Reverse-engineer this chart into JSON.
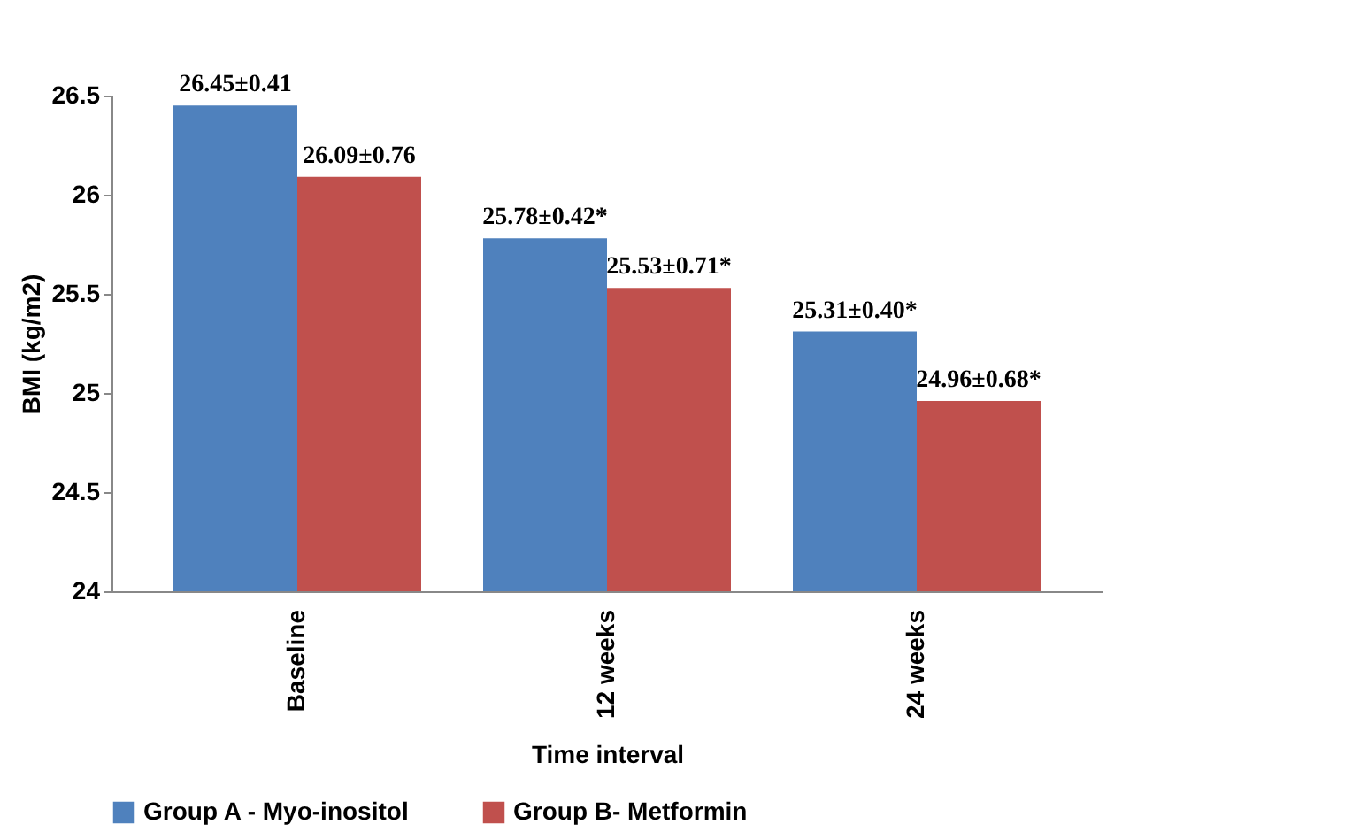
{
  "chart_data": {
    "type": "bar",
    "xlabel": "Time interval",
    "ylabel": "BMI (kg/m2)",
    "categories": [
      "Baseline",
      "12 weeks",
      "24 weeks"
    ],
    "series": [
      {
        "name": "Group A - Myo-inositol",
        "color": "#4f81bd",
        "values": [
          26.45,
          25.78,
          25.31
        ],
        "value_labels": [
          "26.45±0.41",
          "25.78±0.42*",
          "25.31±0.40*"
        ]
      },
      {
        "name": "Group B- Metformin",
        "color": "#c0504d",
        "values": [
          26.09,
          25.53,
          24.96
        ],
        "value_labels": [
          "26.09±0.76",
          "25.53±0.71*",
          "24.96±0.68*"
        ]
      }
    ],
    "ylim": [
      24,
      26.5
    ],
    "yticks": [
      24,
      24.5,
      25,
      25.5,
      26,
      26.5
    ],
    "grid": false,
    "legend": "bottom"
  }
}
